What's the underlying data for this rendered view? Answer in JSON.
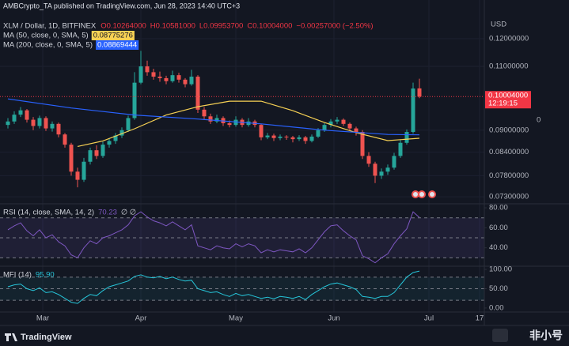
{
  "header": {
    "published": "AMBCrypto_TA published on TradingView.com, Jun 28, 2023 14:40 UTC+3",
    "brand": "TradingView",
    "watermark": "非小号"
  },
  "chart_data": [
    {
      "type": "candlestick",
      "title": "XLM / Dollar, 1D, BITFINEX",
      "ohlc_labels": [
        "O0.10264000",
        "H0.10581000",
        "L0.09953700",
        "C0.10004000",
        "−0.00257000 (−2.50%)"
      ],
      "currency": "USD",
      "scale_marker": "0",
      "up_color": "#26a69a",
      "down_color": "#ef5350",
      "log_scale": true,
      "grid": true,
      "xlim": [
        -2.5,
        150.5
      ],
      "xticks": [
        {
          "value": 11,
          "label": "Mar"
        },
        {
          "value": 42,
          "label": "Apr"
        },
        {
          "value": 72,
          "label": "May"
        },
        {
          "value": 103,
          "label": "Jun"
        },
        {
          "value": 133,
          "label": "Jul"
        },
        {
          "value": 149,
          "label": "17"
        }
      ],
      "ylim": [
        0.0714,
        0.1296
      ],
      "yticks": [
        {
          "value": 0.073,
          "label": "0.07300000"
        },
        {
          "value": 0.078,
          "label": "0.07800000"
        },
        {
          "value": 0.084,
          "label": "0.08400000"
        },
        {
          "value": 0.09,
          "label": "0.09000000"
        },
        {
          "value": 0.11,
          "label": "0.11000000"
        },
        {
          "value": 0.12,
          "label": "0.12000000"
        }
      ],
      "last_price": {
        "value": 0.10004,
        "label": "0.10004000",
        "countdown": "12:19:15",
        "color": "#f23645"
      },
      "x": [
        0,
        2,
        4,
        6,
        8,
        10,
        12,
        14,
        16,
        18,
        20,
        22,
        24,
        26,
        28,
        30,
        32,
        34,
        36,
        38,
        40,
        42,
        44,
        46,
        48,
        50,
        52,
        54,
        56,
        58,
        60,
        62,
        64,
        66,
        68,
        70,
        72,
        74,
        76,
        78,
        80,
        82,
        84,
        86,
        88,
        90,
        92,
        94,
        96,
        98,
        100,
        102,
        104,
        106,
        108,
        110,
        112,
        114,
        116,
        118,
        120,
        122,
        124,
        126,
        128,
        130
      ],
      "ohlc": [
        [
          0.0915,
          0.0935,
          0.0905,
          0.0925
        ],
        [
          0.0925,
          0.0955,
          0.0918,
          0.0945
        ],
        [
          0.0945,
          0.0968,
          0.0938,
          0.0958
        ],
        [
          0.0958,
          0.0962,
          0.0922,
          0.093
        ],
        [
          0.093,
          0.0938,
          0.09,
          0.0912
        ],
        [
          0.0912,
          0.0942,
          0.0905,
          0.0935
        ],
        [
          0.0935,
          0.094,
          0.0898,
          0.0905
        ],
        [
          0.0905,
          0.0925,
          0.0896,
          0.0918
        ],
        [
          0.0918,
          0.0922,
          0.088,
          0.0888
        ],
        [
          0.0888,
          0.0892,
          0.0852,
          0.086
        ],
        [
          0.086,
          0.0865,
          0.078,
          0.079
        ],
        [
          0.079,
          0.08,
          0.0752,
          0.077
        ],
        [
          0.077,
          0.0825,
          0.0765,
          0.0815
        ],
        [
          0.0815,
          0.0852,
          0.0808,
          0.0845
        ],
        [
          0.0845,
          0.0858,
          0.0822,
          0.083
        ],
        [
          0.083,
          0.0868,
          0.0825,
          0.086
        ],
        [
          0.086,
          0.0878,
          0.0852,
          0.087
        ],
        [
          0.087,
          0.0892,
          0.0862,
          0.0885
        ],
        [
          0.0885,
          0.0908,
          0.0878,
          0.09
        ],
        [
          0.09,
          0.0942,
          0.0895,
          0.0935
        ],
        [
          0.0935,
          0.108,
          0.093,
          0.1045
        ],
        [
          0.1045,
          0.1155,
          0.104,
          0.11
        ],
        [
          0.11,
          0.112,
          0.1068,
          0.108
        ],
        [
          0.108,
          0.1092,
          0.1055,
          0.1065
        ],
        [
          0.1065,
          0.1082,
          0.1048,
          0.106
        ],
        [
          0.106,
          0.1068,
          0.104,
          0.105
        ],
        [
          0.105,
          0.1085,
          0.1045,
          0.107
        ],
        [
          0.107,
          0.1078,
          0.1045,
          0.1055
        ],
        [
          0.1055,
          0.106,
          0.103,
          0.104
        ],
        [
          0.104,
          0.1088,
          0.1035,
          0.1065
        ],
        [
          0.1065,
          0.107,
          0.095,
          0.096
        ],
        [
          0.096,
          0.0968,
          0.0932,
          0.094
        ],
        [
          0.094,
          0.0948,
          0.0918,
          0.0925
        ],
        [
          0.0925,
          0.0945,
          0.092,
          0.0935
        ],
        [
          0.0935,
          0.094,
          0.0912,
          0.092
        ],
        [
          0.092,
          0.0928,
          0.0908,
          0.0915
        ],
        [
          0.0915,
          0.094,
          0.091,
          0.093
        ],
        [
          0.093,
          0.0935,
          0.0908,
          0.0915
        ],
        [
          0.0915,
          0.0935,
          0.091,
          0.0925
        ],
        [
          0.0925,
          0.093,
          0.0908,
          0.0915
        ],
        [
          0.0915,
          0.0918,
          0.0872,
          0.088
        ],
        [
          0.088,
          0.0892,
          0.0875,
          0.0885
        ],
        [
          0.0885,
          0.089,
          0.087,
          0.0878
        ],
        [
          0.0878,
          0.0888,
          0.0872,
          0.0882
        ],
        [
          0.0882,
          0.0886,
          0.0873,
          0.088
        ],
        [
          0.088,
          0.0884,
          0.0866,
          0.0875
        ],
        [
          0.0875,
          0.0886,
          0.087,
          0.088
        ],
        [
          0.088,
          0.0884,
          0.0862,
          0.087
        ],
        [
          0.087,
          0.0888,
          0.0866,
          0.0882
        ],
        [
          0.0882,
          0.0906,
          0.0878,
          0.09
        ],
        [
          0.09,
          0.092,
          0.0895,
          0.0915
        ],
        [
          0.0915,
          0.0932,
          0.0908,
          0.0925
        ],
        [
          0.0925,
          0.0938,
          0.0918,
          0.093
        ],
        [
          0.093,
          0.0934,
          0.0912,
          0.0918
        ],
        [
          0.0918,
          0.0922,
          0.0898,
          0.0905
        ],
        [
          0.0905,
          0.091,
          0.0885,
          0.0895
        ],
        [
          0.0895,
          0.09,
          0.0822,
          0.083
        ],
        [
          0.083,
          0.084,
          0.0802,
          0.081
        ],
        [
          0.081,
          0.0815,
          0.0762,
          0.078
        ],
        [
          0.078,
          0.0798,
          0.0772,
          0.079
        ],
        [
          0.079,
          0.0808,
          0.0782,
          0.08
        ],
        [
          0.08,
          0.0838,
          0.0795,
          0.083
        ],
        [
          0.083,
          0.0872,
          0.0825,
          0.0865
        ],
        [
          0.0865,
          0.0902,
          0.086,
          0.0895
        ],
        [
          0.0895,
          0.1045,
          0.089,
          0.1026
        ],
        [
          0.10264,
          0.10581,
          0.099537,
          0.10004
        ]
      ],
      "series": [
        {
          "name": "MA (50, close, 0, SMA, 5)",
          "color": "#f7d154",
          "value_label": "0.08775276",
          "label_text": "#131722",
          "x": [
            22,
            30,
            40,
            50,
            60,
            70,
            80,
            90,
            100,
            110,
            120,
            130
          ],
          "values": [
            0.0855,
            0.087,
            0.0904,
            0.0944,
            0.0969,
            0.0986,
            0.0986,
            0.0957,
            0.0922,
            0.0893,
            0.0871,
            0.08775276
          ]
        },
        {
          "name": "MA (200, close, 0, SMA, 5)",
          "color": "#2962ff",
          "value_label": "0.08869444",
          "label_text": "#ffffff",
          "x": [
            0,
            20,
            40,
            60,
            80,
            100,
            120,
            130
          ],
          "values": [
            0.0993,
            0.0965,
            0.0944,
            0.0932,
            0.0918,
            0.09,
            0.0888,
            0.08869444
          ]
        }
      ]
    },
    {
      "type": "line",
      "title": "RSI (14, close, SMA, 14, 2)",
      "value_label": "70.23",
      "flags": "∅ ∅",
      "color": "#7e57c2",
      "band_color": "rgba(126,87,194,0.12)",
      "ylim": [
        21.6,
        84
      ],
      "yticks": [
        {
          "value": 40,
          "label": "40.00"
        },
        {
          "value": 60,
          "label": "60.00"
        },
        {
          "value": 80,
          "label": "80.00"
        }
      ],
      "levels": [
        70,
        50,
        30
      ],
      "band": [
        30,
        70
      ],
      "values": [
        58,
        62,
        65,
        57,
        52,
        58,
        50,
        53,
        46,
        42,
        33,
        30,
        40,
        47,
        44,
        50,
        52,
        55,
        58,
        63,
        72,
        76,
        71,
        67,
        65,
        62,
        66,
        62,
        58,
        63,
        42,
        40,
        38,
        42,
        40,
        39,
        44,
        41,
        44,
        42,
        35,
        38,
        36,
        38,
        37,
        36,
        39,
        35,
        40,
        48,
        56,
        62,
        63,
        57,
        52,
        48,
        32,
        29,
        25,
        30,
        34,
        44,
        52,
        59,
        76,
        70.23
      ]
    },
    {
      "type": "line",
      "title": "MFI (14)",
      "value_label": "95.90",
      "color": "#26c6da",
      "band_color": "rgba(38,198,218,0.07)",
      "ylim": [
        -10.4,
        108.3
      ],
      "yticks": [
        {
          "value": 0,
          "label": "0.00"
        },
        {
          "value": 50,
          "label": "50.00"
        },
        {
          "value": 100,
          "label": "100.00"
        }
      ],
      "levels": [
        80,
        50,
        20
      ],
      "band": [
        20,
        80
      ],
      "values": [
        55,
        60,
        62,
        50,
        45,
        52,
        40,
        42,
        35,
        25,
        15,
        12,
        25,
        35,
        32,
        45,
        55,
        60,
        65,
        70,
        82,
        86,
        80,
        78,
        82,
        76,
        80,
        74,
        70,
        72,
        50,
        45,
        40,
        42,
        35,
        30,
        38,
        32,
        35,
        30,
        25,
        28,
        24,
        30,
        28,
        25,
        30,
        22,
        35,
        45,
        55,
        62,
        65,
        60,
        55,
        48,
        30,
        28,
        25,
        30,
        30,
        40,
        60,
        80,
        92,
        95.9
      ]
    }
  ]
}
